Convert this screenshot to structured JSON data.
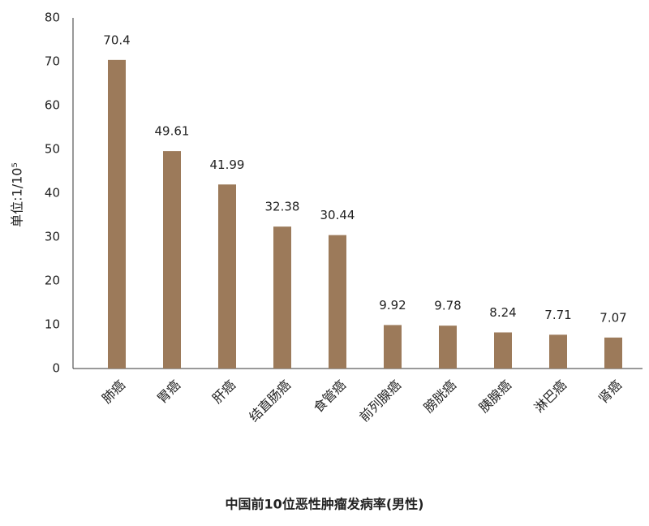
{
  "chart_data": {
    "type": "bar",
    "title": "中国前10位恶性肿瘤发病率(男性)",
    "y_label": "单位:1/10⁵",
    "categories": [
      "肺癌",
      "胃癌",
      "肝癌",
      "结直肠癌",
      "食管癌",
      "前列腺癌",
      "膀胱癌",
      "胰腺癌",
      "淋巴癌",
      "肾癌"
    ],
    "values": [
      70.4,
      49.61,
      41.99,
      32.38,
      30.44,
      9.92,
      9.78,
      8.24,
      7.71,
      7.07
    ],
    "color": "#9c7a5a",
    "ylim": [
      0,
      80
    ],
    "yticks": [
      0,
      10,
      20,
      30,
      40,
      50,
      60,
      70,
      80
    ],
    "grid": false
  }
}
